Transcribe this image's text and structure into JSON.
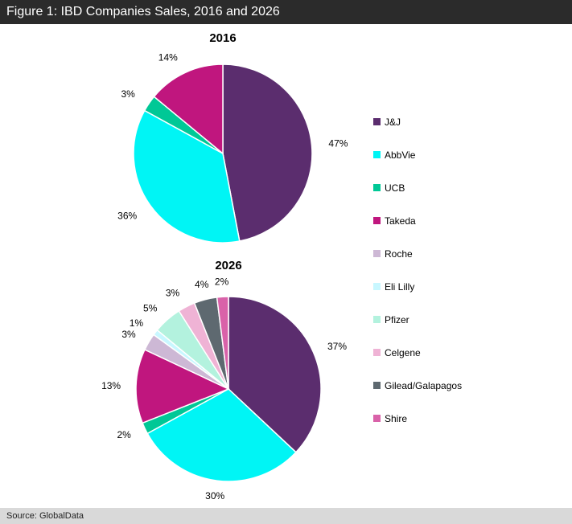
{
  "figure": {
    "title": "Figure 1: IBD Companies Sales, 2016 and 2026",
    "source": "Source:  GlobalData"
  },
  "legend": [
    {
      "name": "J&J",
      "color": "#5b2d6e"
    },
    {
      "name": "AbbVie",
      "color": "#00f5f5"
    },
    {
      "name": "UCB",
      "color": "#00c896"
    },
    {
      "name": "Takeda",
      "color": "#c0167e"
    },
    {
      "name": "Roche",
      "color": "#cdb8d5"
    },
    {
      "name": "Eli Lilly",
      "color": "#c8f7ff"
    },
    {
      "name": "Pfizer",
      "color": "#b3f2de"
    },
    {
      "name": "Celgene",
      "color": "#efb3d5"
    },
    {
      "name": "Gilead/Galapagos",
      "color": "#5e6970"
    },
    {
      "name": "Shire",
      "color": "#d962a9"
    }
  ],
  "chart_data": [
    {
      "type": "pie",
      "title": "2016",
      "slices": [
        {
          "name": "J&J",
          "value": 47,
          "label": "47%"
        },
        {
          "name": "AbbVie",
          "value": 36,
          "label": "36%"
        },
        {
          "name": "UCB",
          "value": 3,
          "label": "3%"
        },
        {
          "name": "Takeda",
          "value": 14,
          "label": "14%"
        }
      ]
    },
    {
      "type": "pie",
      "title": "2026",
      "slices": [
        {
          "name": "J&J",
          "value": 37,
          "label": "37%"
        },
        {
          "name": "AbbVie",
          "value": 30,
          "label": "30%"
        },
        {
          "name": "UCB",
          "value": 2,
          "label": "2%"
        },
        {
          "name": "Takeda",
          "value": 13,
          "label": "13%"
        },
        {
          "name": "Roche",
          "value": 3,
          "label": "3%"
        },
        {
          "name": "Eli Lilly",
          "value": 1,
          "label": "1%"
        },
        {
          "name": "Pfizer",
          "value": 5,
          "label": "5%"
        },
        {
          "name": "Celgene",
          "value": 3,
          "label": "3%"
        },
        {
          "name": "Gilead/Galapagos",
          "value": 4,
          "label": "4%"
        },
        {
          "name": "Shire",
          "value": 2,
          "label": "2%"
        }
      ]
    }
  ]
}
